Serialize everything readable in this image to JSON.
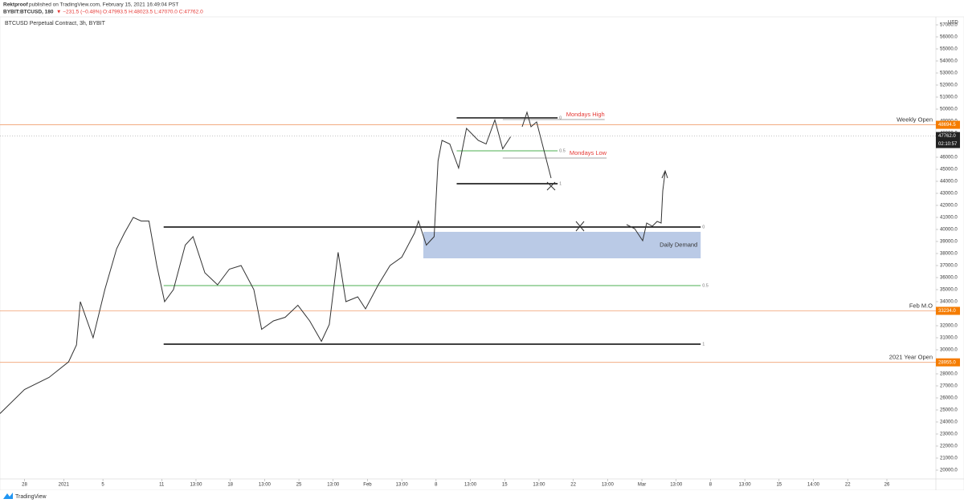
{
  "chart_data": {
    "type": "line",
    "header": {
      "author": "Rektproof",
      "published": "published on TradingView.com, February 15, 2021 16:49:04 PST",
      "symbol": "BYBIT:BTCUSD, 180",
      "change": "▼ −231.5 (−0.48%)",
      "ohlc": "O:47993.5 H:48023.5 L:47070.0 C:47762.0"
    },
    "title": "BTCUSD Perpetual Contract, 3h, BYBIT",
    "currency": "USD",
    "footer": "TradingView",
    "x": [
      -2.5,
      0,
      2.5,
      4.5,
      5.3,
      5.7,
      7.0,
      8.2,
      9.4,
      10.2,
      11.1,
      11.9,
      12.7,
      13.5,
      14.3,
      15.2,
      16.4,
      17.2,
      18.4,
      19.7,
      20.9,
      22.1,
      23.4,
      24.2,
      25.4,
      26.6,
      27.9,
      29.1,
      30.3,
      31.1,
      32.0,
      32.8,
      34.0,
      34.8,
      36.1,
      37.3,
      38.5,
      39.8,
      40.2,
      41.0,
      41.8,
      42.2,
      42.6,
      43.4,
      44.3,
      45.1,
      46.3,
      47.1,
      48.0,
      48.8,
      49.6
    ],
    "series": [
      {
        "name": "BTCUSD",
        "color": "#333333",
        "values": [
          24700,
          26700,
          27700,
          29000,
          30400,
          34000,
          31000,
          35000,
          38400,
          39700,
          41000,
          40700,
          40700,
          37000,
          34000,
          35000,
          38700,
          39400,
          36400,
          35400,
          36700,
          37000,
          35000,
          31700,
          32400,
          32700,
          33700,
          32400,
          30700,
          32100,
          38100,
          34000,
          34400,
          33400,
          35400,
          37000,
          37700,
          39700,
          40700,
          38700,
          39400,
          45700,
          47400,
          47100,
          45100,
          48400,
          47400,
          47100,
          49100,
          46700,
          47700
        ]
      }
    ],
    "xlim": [
      -2.5,
      93
    ],
    "ylim": [
      19267,
      57600
    ],
    "xticks": [
      {
        "value": 0,
        "label": "28"
      },
      {
        "value": 4,
        "label": "2021"
      },
      {
        "value": 8,
        "label": "5"
      },
      {
        "value": 14,
        "label": "11"
      },
      {
        "value": 17.5,
        "label": "13:00"
      },
      {
        "value": 21,
        "label": "18"
      },
      {
        "value": 24.5,
        "label": "13:00"
      },
      {
        "value": 28,
        "label": "25"
      },
      {
        "value": 31.5,
        "label": "13:00"
      },
      {
        "value": 35,
        "label": "Feb"
      },
      {
        "value": 38.5,
        "label": "13:00"
      },
      {
        "value": 42,
        "label": "8"
      },
      {
        "value": 45.5,
        "label": "13:00"
      },
      {
        "value": 49,
        "label": "15"
      },
      {
        "value": 52.5,
        "label": "13:00"
      },
      {
        "value": 56,
        "label": "22"
      },
      {
        "value": 59.5,
        "label": "13:00"
      },
      {
        "value": 63,
        "label": "Mar"
      },
      {
        "value": 66.5,
        "label": "13:00"
      },
      {
        "value": 70,
        "label": "8"
      },
      {
        "value": 73.5,
        "label": "13:00"
      },
      {
        "value": 77,
        "label": "15"
      },
      {
        "value": 80.5,
        "label": "14:00"
      },
      {
        "value": 84,
        "label": "22"
      },
      {
        "value": 88,
        "label": "26"
      }
    ],
    "yticks": [
      {
        "value": 20000,
        "label": "20000.0"
      },
      {
        "value": 21000,
        "label": "21000.0"
      },
      {
        "value": 22000,
        "label": "22000.0"
      },
      {
        "value": 23000,
        "label": "23000.0"
      },
      {
        "value": 24000,
        "label": "24000.0"
      },
      {
        "value": 25000,
        "label": "25000.0"
      },
      {
        "value": 26000,
        "label": "26000.0"
      },
      {
        "value": 27000,
        "label": "27000.0"
      },
      {
        "value": 28000,
        "label": "28000.0"
      },
      {
        "value": 29000,
        "label": "29000.0"
      },
      {
        "value": 30000,
        "label": "30000.0"
      },
      {
        "value": 31000,
        "label": "31000.0"
      },
      {
        "value": 32000,
        "label": "32000.0"
      },
      {
        "value": 33000,
        "label": "33000.0"
      },
      {
        "value": 34000,
        "label": "34000.0"
      },
      {
        "value": 35000,
        "label": "35000.0"
      },
      {
        "value": 36000,
        "label": "36000.0"
      },
      {
        "value": 37000,
        "label": "37000.0"
      },
      {
        "value": 38000,
        "label": "38000.0"
      },
      {
        "value": 39000,
        "label": "39000.0"
      },
      {
        "value": 40000,
        "label": "40000.0"
      },
      {
        "value": 41000,
        "label": "41000.0"
      },
      {
        "value": 42000,
        "label": "42000.0"
      },
      {
        "value": 43000,
        "label": "43000.0"
      },
      {
        "value": 44000,
        "label": "44000.0"
      },
      {
        "value": 45000,
        "label": "45000.0"
      },
      {
        "value": 46000,
        "label": "46000.0"
      },
      {
        "value": 47000,
        "label": "47000.0"
      },
      {
        "value": 48000,
        "label": "48000.0"
      },
      {
        "value": 49000,
        "label": "49000.0"
      },
      {
        "value": 50000,
        "label": "50000.0"
      },
      {
        "value": 51000,
        "label": "51000.0"
      },
      {
        "value": 52000,
        "label": "52000.0"
      },
      {
        "value": 53000,
        "label": "53000.0"
      },
      {
        "value": 54000,
        "label": "54000.0"
      },
      {
        "value": 55000,
        "label": "55000.0"
      },
      {
        "value": 56000,
        "label": "56000.0"
      },
      {
        "value": 57000,
        "label": "57000.0"
      }
    ],
    "grid": false,
    "last_price": {
      "value": 47762,
      "label": "47762.0",
      "countdown": "02:10:57"
    },
    "hlines": [
      {
        "label": "Weekly Open",
        "value": 48694.5,
        "badge": "48694.5",
        "color": "#f0a070"
      },
      {
        "label": "Feb M.O",
        "value": 33234,
        "badge": "33234.0",
        "color": "#f0a070"
      },
      {
        "label": "2021 Year Open",
        "value": 28955,
        "badge": "28955.0",
        "color": "#f0a070"
      }
    ],
    "fibs": [
      {
        "x_range": [
          14.2,
          69
        ],
        "levels": [
          {
            "ratio": 0,
            "value": 40200,
            "color": "#000000"
          },
          {
            "ratio": 0.5,
            "value": 35333,
            "color": "#4caf50"
          },
          {
            "ratio": 1,
            "value": 30467,
            "color": "#000000"
          }
        ]
      },
      {
        "x_range": [
          44.1,
          54.4
        ],
        "levels": [
          {
            "ratio": 0,
            "value": 49270,
            "color": "#000000"
          },
          {
            "ratio": 0.5,
            "value": 46535,
            "color": "#4caf50"
          },
          {
            "ratio": 1,
            "value": 43800,
            "color": "#000000"
          }
        ]
      }
    ],
    "range_lines": [
      {
        "label": "Mondays High",
        "value": 49133,
        "x_range": [
          48.8,
          59.2
        ],
        "color": "#e53935"
      },
      {
        "label": "Mondays Low",
        "value": 45933,
        "x_range": [
          48.8,
          59.4
        ],
        "color": "#e53935"
      }
    ],
    "zone": {
      "label": "Daily Demand",
      "top": 39800,
      "bottom": 37600,
      "x_range": [
        40.7,
        69
      ],
      "color": "#a9bde0"
    }
  }
}
